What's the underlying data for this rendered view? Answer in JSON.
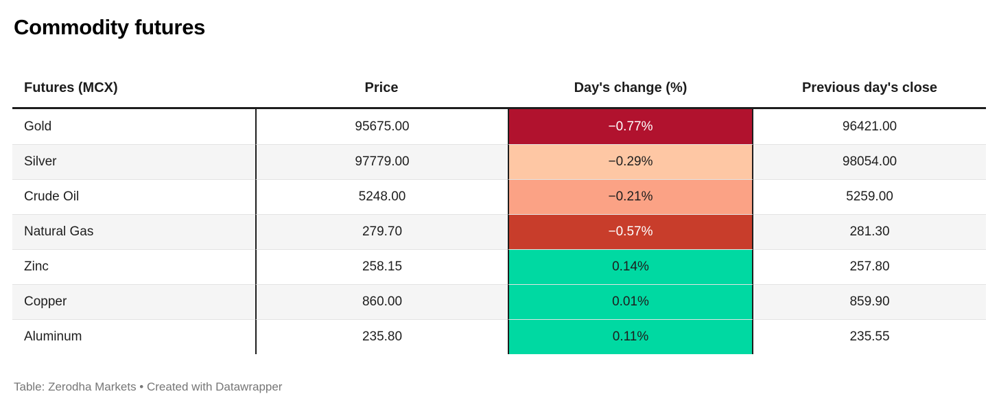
{
  "title": "Commodity futures",
  "table": {
    "columns": [
      "Futures (MCX)",
      "Price",
      "Day's change (%)",
      "Previous day's close"
    ],
    "rows": [
      {
        "name": "Gold",
        "price": "95675.00",
        "change": "−0.77%",
        "prev_close": "96421.00",
        "change_bg": "#b1122e",
        "change_fg": "#ffffff"
      },
      {
        "name": "Silver",
        "price": "97779.00",
        "change": "−0.29%",
        "prev_close": "98054.00",
        "change_bg": "#fec7a4",
        "change_fg": "#1d1d1d"
      },
      {
        "name": "Crude Oil",
        "price": "5248.00",
        "change": "−0.21%",
        "prev_close": "5259.00",
        "change_bg": "#fba285",
        "change_fg": "#1d1d1d"
      },
      {
        "name": "Natural Gas",
        "price": "279.70",
        "change": "−0.57%",
        "prev_close": "281.30",
        "change_bg": "#c83d2b",
        "change_fg": "#ffffff"
      },
      {
        "name": "Zinc",
        "price": "258.15",
        "change": "0.14%",
        "prev_close": "257.80",
        "change_bg": "#00d9a2",
        "change_fg": "#1d1d1d"
      },
      {
        "name": "Copper",
        "price": "860.00",
        "change": "0.01%",
        "prev_close": "859.90",
        "change_bg": "#00d9a2",
        "change_fg": "#1d1d1d"
      },
      {
        "name": "Aluminum",
        "price": "235.80",
        "change": "0.11%",
        "prev_close": "235.55",
        "change_bg": "#00d9a2",
        "change_fg": "#1d1d1d"
      }
    ]
  },
  "footer": "Table: Zerodha Markets • Created with Datawrapper",
  "colors": {
    "negative_strong": "#b1122e",
    "negative_medium": "#c83d2b",
    "negative_light": "#fba285",
    "negative_faint": "#fec7a4",
    "positive": "#00d9a2",
    "row_stripe": "#f5f5f5",
    "border": "#1d1d1d",
    "footer_text": "#767676"
  },
  "chart_data": {
    "type": "table",
    "title": "Commodity futures",
    "columns": [
      "Futures (MCX)",
      "Price",
      "Day's change (%)",
      "Previous day's close"
    ],
    "rows": [
      [
        "Gold",
        95675.0,
        -0.77,
        96421.0
      ],
      [
        "Silver",
        97779.0,
        -0.29,
        98054.0
      ],
      [
        "Crude Oil",
        5248.0,
        -0.21,
        5259.0
      ],
      [
        "Natural Gas",
        279.7,
        -0.57,
        281.3
      ],
      [
        "Zinc",
        258.15,
        0.14,
        257.8
      ],
      [
        "Copper",
        860.0,
        0.01,
        859.9
      ],
      [
        "Aluminum",
        235.8,
        0.11,
        235.55
      ]
    ],
    "notes": "Day's change (%) cells are heat-colored: shades of red for negative values, green for positive values",
    "source": "Table: Zerodha Markets • Created with Datawrapper"
  }
}
